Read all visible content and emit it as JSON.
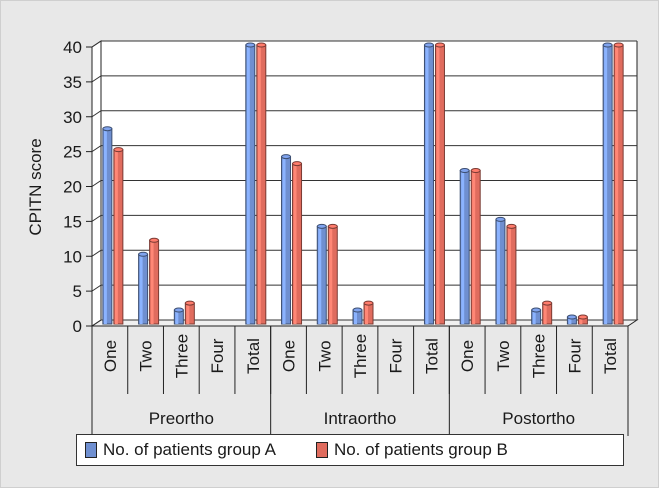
{
  "chart_data": {
    "type": "bar",
    "ylabel": "CPITN score",
    "ylim": [
      0,
      40
    ],
    "yticks": [
      0,
      5,
      10,
      15,
      20,
      25,
      30,
      35,
      40
    ],
    "grid": true,
    "legend_position": "bottom",
    "groups": [
      "Preortho",
      "Intraortho",
      "Postortho"
    ],
    "categories": [
      "One",
      "Two",
      "Three",
      "Four",
      "Total",
      "One",
      "Two",
      "Three",
      "Four",
      "Total",
      "One",
      "Two",
      "Three",
      "Four",
      "Total"
    ],
    "series": [
      {
        "name": "No. of patients group A",
        "color": "#6f8fd0",
        "values": [
          28,
          10,
          2,
          0,
          40,
          24,
          14,
          2,
          0,
          40,
          22,
          15,
          2,
          1,
          40
        ]
      },
      {
        "name": "No. of patients group B",
        "color": "#e06c5e",
        "values": [
          25,
          12,
          3,
          0,
          40,
          23,
          14,
          3,
          0,
          40,
          22,
          14,
          3,
          1,
          40
        ]
      }
    ]
  }
}
